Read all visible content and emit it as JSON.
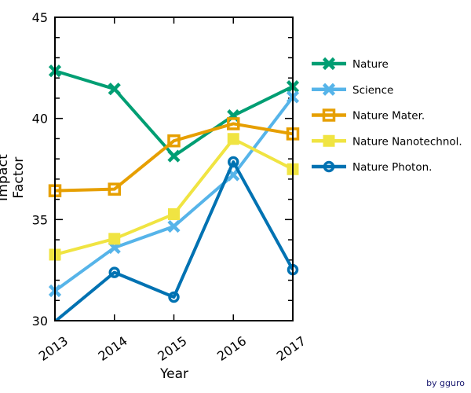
{
  "chart_data": {
    "type": "line",
    "title": "",
    "xlabel": "Year",
    "ylabel": "Impact Factor",
    "x": [
      2013,
      2014,
      2015,
      2016,
      2017
    ],
    "x_tick_labels": [
      "2013",
      "2014",
      "2015",
      "2016",
      "2017"
    ],
    "ylim": [
      30,
      45
    ],
    "y_major_ticks": [
      30,
      35,
      40,
      45
    ],
    "y_tick_labels": [
      "30",
      "35",
      "40",
      "45"
    ],
    "y_minor_tick_step": 1,
    "grid": false,
    "frame": "box",
    "tick_direction": "in",
    "legend_position": "right-outside",
    "series": [
      {
        "name": "Nature",
        "color": "#009E73",
        "marker": "x-cross",
        "values": [
          42.351,
          41.456,
          38.138,
          40.137,
          41.577
        ]
      },
      {
        "name": "Science",
        "color": "#56B4E9",
        "marker": "x-cross",
        "values": [
          31.477,
          33.611,
          34.661,
          37.205,
          41.058
        ]
      },
      {
        "name": "Nature Mater.",
        "color": "#E69F00",
        "marker": "square-open",
        "values": [
          36.425,
          36.503,
          38.891,
          39.737,
          39.235
        ]
      },
      {
        "name": "Nature Nanotechnol.",
        "color": "#F0E442",
        "marker": "square-filled",
        "values": [
          33.265,
          34.048,
          35.267,
          38.986,
          37.49
        ]
      },
      {
        "name": "Nature Photon.",
        "color": "#0072B2",
        "marker": "circle-open",
        "values": [
          29.958,
          32.386,
          31.167,
          37.852,
          32.521
        ]
      }
    ]
  },
  "attribution": "by gguro",
  "colors": {
    "frame": "#000000",
    "text": "#000000",
    "attribution": "#191970",
    "background": "#ffffff"
  }
}
